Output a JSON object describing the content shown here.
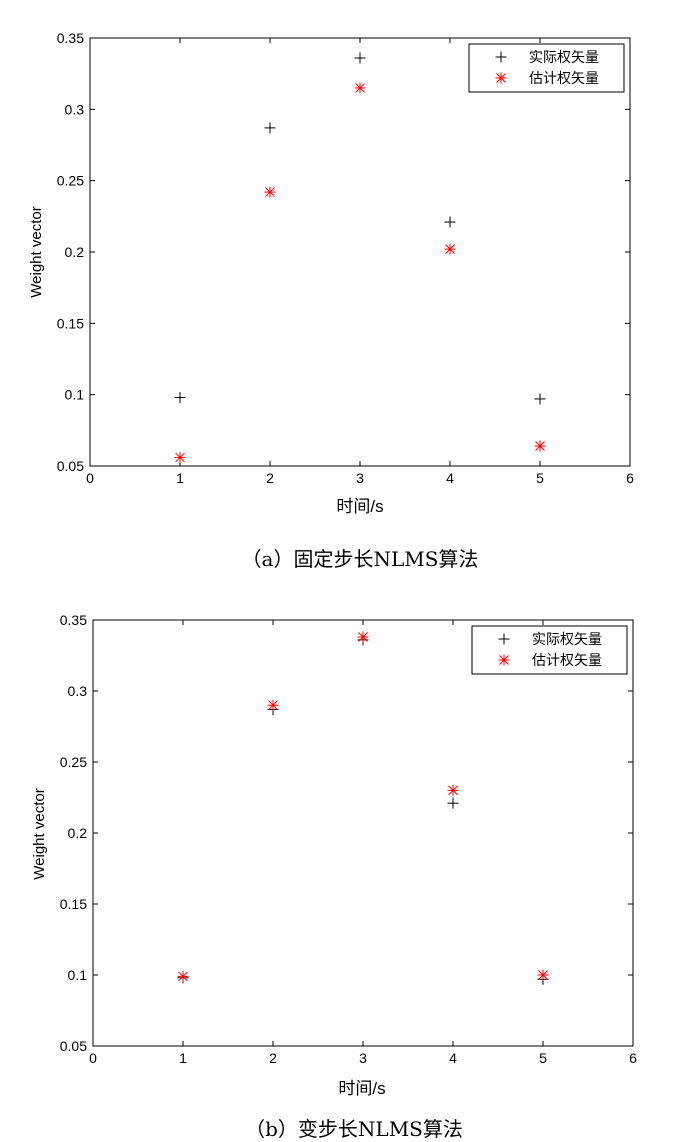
{
  "chart_data": [
    {
      "type": "scatter",
      "caption": "（a）固定步长NLMS算法",
      "xlabel": "时间/s",
      "ylabel": "Weight vector",
      "xlim": [
        0,
        6
      ],
      "ylim": [
        0.05,
        0.35
      ],
      "xticks": [
        0,
        1,
        2,
        3,
        4,
        5,
        6
      ],
      "yticks": [
        0.05,
        0.1,
        0.15,
        0.2,
        0.25,
        0.3,
        0.35
      ],
      "ytick_labels": [
        "0.05",
        "0.1",
        "0.15",
        "0.2",
        "0.25",
        "0.3",
        "0.35"
      ],
      "grid": false,
      "legend_position": "top-right",
      "series": [
        {
          "name": "实际权矢量",
          "marker": "plus",
          "color": "#000000",
          "x": [
            1,
            2,
            3,
            4,
            5
          ],
          "y": [
            0.098,
            0.287,
            0.336,
            0.221,
            0.097
          ]
        },
        {
          "name": "估计权矢量",
          "marker": "asterisk",
          "color": "#ff0000",
          "x": [
            1,
            2,
            3,
            4,
            5
          ],
          "y": [
            0.056,
            0.242,
            0.315,
            0.202,
            0.064
          ]
        }
      ]
    },
    {
      "type": "scatter",
      "caption": "（b）变步长NLMS算法",
      "xlabel": "时间/s",
      "ylabel": "Weight vector",
      "xlim": [
        0,
        6
      ],
      "ylim": [
        0.05,
        0.35
      ],
      "xticks": [
        0,
        1,
        2,
        3,
        4,
        5,
        6
      ],
      "yticks": [
        0.05,
        0.1,
        0.15,
        0.2,
        0.25,
        0.3,
        0.35
      ],
      "ytick_labels": [
        "0.05",
        "0.1",
        "0.15",
        "0.2",
        "0.25",
        "0.3",
        "0.35"
      ],
      "grid": false,
      "legend_position": "top-right",
      "series": [
        {
          "name": "实际权矢量",
          "marker": "plus",
          "color": "#000000",
          "x": [
            1,
            2,
            3,
            4,
            5
          ],
          "y": [
            0.098,
            0.287,
            0.336,
            0.221,
            0.097
          ]
        },
        {
          "name": "估计权矢量",
          "marker": "asterisk",
          "color": "#ff0000",
          "x": [
            1,
            2,
            3,
            4,
            5
          ],
          "y": [
            0.099,
            0.29,
            0.338,
            0.23,
            0.1
          ]
        }
      ]
    }
  ]
}
